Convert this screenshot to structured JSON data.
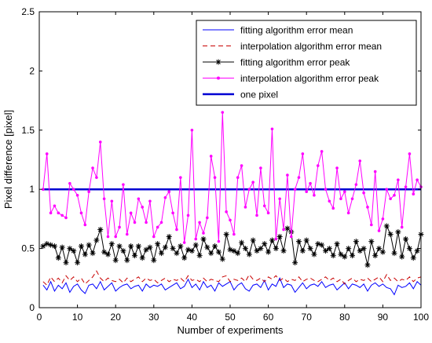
{
  "chart_data": {
    "type": "line",
    "xlabel": "Number of experiments",
    "ylabel": "Pixel difference [pixel]",
    "xlim": [
      0,
      100
    ],
    "ylim": [
      0,
      2.5
    ],
    "xticks": [
      0,
      10,
      20,
      30,
      40,
      50,
      60,
      70,
      80,
      90,
      100
    ],
    "yticks": [
      0,
      0.5,
      1,
      1.5,
      2,
      2.5
    ],
    "xtick_labels": [
      "0",
      "10",
      "20",
      "30",
      "40",
      "50",
      "60",
      "70",
      "80",
      "90",
      "100"
    ],
    "ytick_labels": [
      "0",
      "0.5",
      "1",
      "1.5",
      "2",
      "2.5"
    ],
    "grid": false,
    "legend_position": "top-right",
    "x": [
      1,
      2,
      3,
      4,
      5,
      6,
      7,
      8,
      9,
      10,
      11,
      12,
      13,
      14,
      15,
      16,
      17,
      18,
      19,
      20,
      21,
      22,
      23,
      24,
      25,
      26,
      27,
      28,
      29,
      30,
      31,
      32,
      33,
      34,
      35,
      36,
      37,
      38,
      39,
      40,
      41,
      42,
      43,
      44,
      45,
      46,
      47,
      48,
      49,
      50,
      51,
      52,
      53,
      54,
      55,
      56,
      57,
      58,
      59,
      60,
      61,
      62,
      63,
      64,
      65,
      66,
      67,
      68,
      69,
      70,
      71,
      72,
      73,
      74,
      75,
      76,
      77,
      78,
      79,
      80,
      81,
      82,
      83,
      84,
      85,
      86,
      87,
      88,
      89,
      90,
      91,
      92,
      93,
      94,
      95,
      96,
      97,
      98,
      99,
      100
    ],
    "series": [
      {
        "name": "fitting algorithm error mean",
        "color": "#0000ff",
        "style": "solid",
        "marker": "none",
        "values": [
          0.19,
          0.15,
          0.22,
          0.14,
          0.19,
          0.16,
          0.21,
          0.13,
          0.18,
          0.2,
          0.15,
          0.12,
          0.19,
          0.2,
          0.16,
          0.22,
          0.15,
          0.18,
          0.21,
          0.14,
          0.17,
          0.19,
          0.2,
          0.16,
          0.18,
          0.19,
          0.14,
          0.2,
          0.17,
          0.19,
          0.18,
          0.2,
          0.15,
          0.17,
          0.19,
          0.21,
          0.16,
          0.18,
          0.24,
          0.17,
          0.2,
          0.15,
          0.22,
          0.17,
          0.19,
          0.14,
          0.21,
          0.18,
          0.2,
          0.22,
          0.15,
          0.19,
          0.21,
          0.16,
          0.14,
          0.19,
          0.2,
          0.17,
          0.23,
          0.15,
          0.2,
          0.18,
          0.25,
          0.17,
          0.2,
          0.19,
          0.13,
          0.17,
          0.21,
          0.16,
          0.19,
          0.2,
          0.18,
          0.22,
          0.17,
          0.19,
          0.2,
          0.15,
          0.18,
          0.21,
          0.16,
          0.2,
          0.19,
          0.17,
          0.2,
          0.14,
          0.19,
          0.21,
          0.18,
          0.2,
          0.17,
          0.16,
          0.11,
          0.19,
          0.17,
          0.18,
          0.21,
          0.16,
          0.22,
          0.19
        ]
      },
      {
        "name": "interpolation algorithm error mean",
        "color": "#c80000",
        "style": "dashed",
        "marker": "none",
        "values": [
          0.22,
          0.19,
          0.26,
          0.22,
          0.25,
          0.21,
          0.27,
          0.23,
          0.26,
          0.22,
          0.25,
          0.2,
          0.23,
          0.26,
          0.31,
          0.25,
          0.22,
          0.25,
          0.23,
          0.22,
          0.24,
          0.21,
          0.25,
          0.22,
          0.24,
          0.26,
          0.22,
          0.25,
          0.23,
          0.24,
          0.21,
          0.23,
          0.25,
          0.22,
          0.24,
          0.23,
          0.25,
          0.22,
          0.27,
          0.23,
          0.24,
          0.22,
          0.25,
          0.22,
          0.24,
          0.23,
          0.22,
          0.26,
          0.27,
          0.22,
          0.24,
          0.23,
          0.25,
          0.22,
          0.28,
          0.24,
          0.23,
          0.25,
          0.22,
          0.26,
          0.24,
          0.27,
          0.23,
          0.25,
          0.22,
          0.24,
          0.23,
          0.26,
          0.22,
          0.24,
          0.25,
          0.23,
          0.22,
          0.24,
          0.26,
          0.23,
          0.25,
          0.22,
          0.24,
          0.2,
          0.23,
          0.25,
          0.22,
          0.24,
          0.23,
          0.25,
          0.22,
          0.24,
          0.26,
          0.22,
          0.28,
          0.23,
          0.25,
          0.22,
          0.24,
          0.23,
          0.26,
          0.22,
          0.25,
          0.26
        ]
      },
      {
        "name": "fitting algorithm error peak",
        "color": "#000000",
        "style": "solid",
        "marker": "asterisk",
        "values": [
          0.52,
          0.54,
          0.53,
          0.52,
          0.42,
          0.51,
          0.38,
          0.5,
          0.48,
          0.38,
          0.52,
          0.45,
          0.53,
          0.46,
          0.57,
          0.66,
          0.47,
          0.45,
          0.54,
          0.4,
          0.52,
          0.48,
          0.4,
          0.52,
          0.44,
          0.52,
          0.42,
          0.49,
          0.51,
          0.4,
          0.54,
          0.46,
          0.51,
          0.6,
          0.5,
          0.46,
          0.52,
          0.42,
          0.49,
          0.48,
          0.53,
          0.44,
          0.58,
          0.51,
          0.46,
          0.52,
          0.47,
          0.41,
          0.62,
          0.49,
          0.48,
          0.46,
          0.55,
          0.5,
          0.45,
          0.57,
          0.48,
          0.5,
          0.54,
          0.47,
          0.57,
          0.5,
          0.6,
          0.48,
          0.67,
          0.64,
          0.38,
          0.56,
          0.48,
          0.57,
          0.5,
          0.45,
          0.54,
          0.53,
          0.48,
          0.5,
          0.44,
          0.54,
          0.45,
          0.43,
          0.5,
          0.44,
          0.56,
          0.48,
          0.5,
          0.36,
          0.56,
          0.44,
          0.5,
          0.47,
          0.69,
          0.62,
          0.46,
          0.64,
          0.43,
          0.58,
          0.5,
          0.42,
          0.48,
          0.62
        ]
      },
      {
        "name": "interpolation algorithm error peak",
        "color": "#ff00ff",
        "style": "solid",
        "marker": "dot",
        "values": [
          1.0,
          1.3,
          0.8,
          0.86,
          0.8,
          0.78,
          0.76,
          1.05,
          1.0,
          0.95,
          0.8,
          0.7,
          0.98,
          1.18,
          1.1,
          1.4,
          0.92,
          0.6,
          0.9,
          0.6,
          0.68,
          1.04,
          0.62,
          0.8,
          0.72,
          0.92,
          0.85,
          0.72,
          0.9,
          0.6,
          0.68,
          0.72,
          0.93,
          0.98,
          0.8,
          0.66,
          1.1,
          0.55,
          0.78,
          1.5,
          0.58,
          0.72,
          0.63,
          0.76,
          1.28,
          1.1,
          0.56,
          1.65,
          0.81,
          0.74,
          0.62,
          1.1,
          1.2,
          0.85,
          1.0,
          1.06,
          0.78,
          1.18,
          0.86,
          0.8,
          1.51,
          0.58,
          0.92,
          0.66,
          1.12,
          0.6,
          1.0,
          1.1,
          1.3,
          0.98,
          1.05,
          0.95,
          1.2,
          1.32,
          1.0,
          0.9,
          0.84,
          1.18,
          0.92,
          0.98,
          0.8,
          0.92,
          1.04,
          1.24,
          0.97,
          0.85,
          0.7,
          1.15,
          0.65,
          0.75,
          1.0,
          0.92,
          0.95,
          1.08,
          0.68,
          1.02,
          1.3,
          0.96,
          1.08,
          1.02
        ]
      },
      {
        "name": "one pixel",
        "color": "#0000d2",
        "style": "solid-thick",
        "marker": "none",
        "values": [
          1,
          1,
          1,
          1,
          1,
          1,
          1,
          1,
          1,
          1,
          1,
          1,
          1,
          1,
          1,
          1,
          1,
          1,
          1,
          1,
          1,
          1,
          1,
          1,
          1,
          1,
          1,
          1,
          1,
          1,
          1,
          1,
          1,
          1,
          1,
          1,
          1,
          1,
          1,
          1,
          1,
          1,
          1,
          1,
          1,
          1,
          1,
          1,
          1,
          1,
          1,
          1,
          1,
          1,
          1,
          1,
          1,
          1,
          1,
          1,
          1,
          1,
          1,
          1,
          1,
          1,
          1,
          1,
          1,
          1,
          1,
          1,
          1,
          1,
          1,
          1,
          1,
          1,
          1,
          1,
          1,
          1,
          1,
          1,
          1,
          1,
          1,
          1,
          1,
          1,
          1,
          1,
          1,
          1,
          1,
          1,
          1,
          1,
          1,
          1
        ]
      }
    ]
  }
}
